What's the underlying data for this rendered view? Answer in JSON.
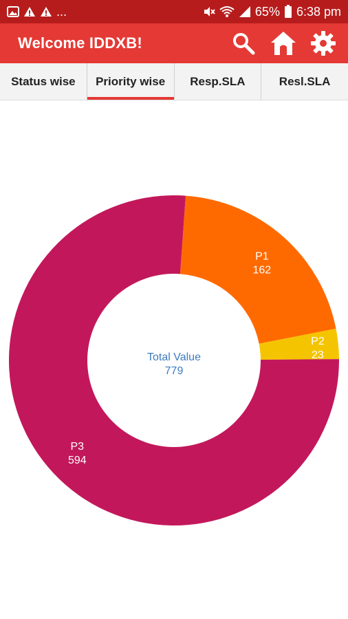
{
  "status_bar": {
    "overflow": "...",
    "battery": "65%",
    "time": "6:38 pm"
  },
  "app_bar": {
    "title": "Welcome IDDXB!",
    "actions": [
      "search-icon",
      "home-icon",
      "gear-icon"
    ]
  },
  "tabs": [
    {
      "label": "Status wise",
      "active": false
    },
    {
      "label": "Priority wise",
      "active": true
    },
    {
      "label": "Resp.SLA",
      "active": false
    },
    {
      "label": "Resl.SLA",
      "active": false
    }
  ],
  "colors": {
    "primary": "#e53935",
    "status_bar": "#b71c1c",
    "p1": "#ff6a00",
    "p2": "#f5c400",
    "p3": "#c2185b",
    "center_text": "#3b7bbf"
  },
  "chart_data": {
    "type": "pie",
    "donut": true,
    "center_label": "Total Value",
    "center_value": "779",
    "slices": [
      {
        "name": "P1",
        "value": 162,
        "color": "#ff6a00"
      },
      {
        "name": "P2",
        "value": 23,
        "color": "#f5c400"
      },
      {
        "name": "P3",
        "value": 594,
        "color": "#c2185b"
      }
    ]
  }
}
